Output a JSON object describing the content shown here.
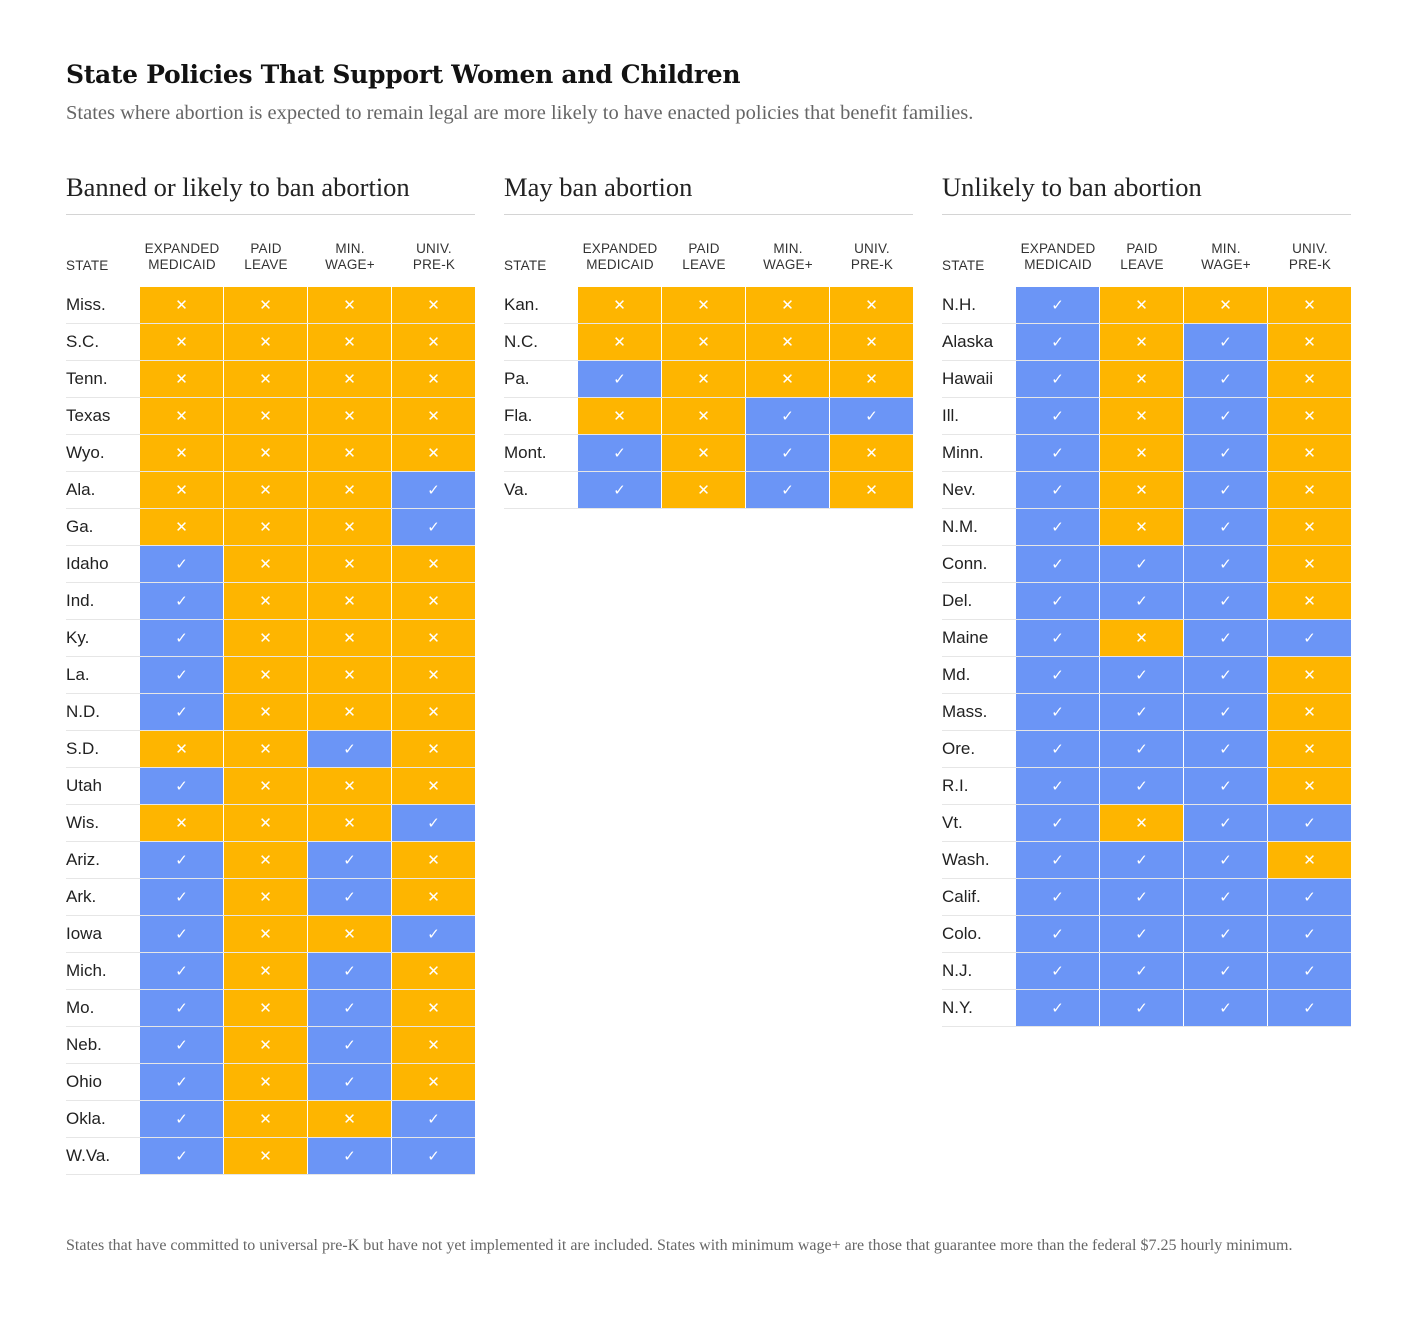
{
  "title": "State Policies That Support Women and Children",
  "subtitle": "States where abortion is expected to remain legal are more likely to have enacted policies that benefit families.",
  "footnote": "States that have committed to universal pre-K but have not yet implemented it are included. States with minimum wage+ are those that guarantee more than the federal $7.25 hourly minimum.",
  "symbols": {
    "yes": "✓",
    "no": "✕"
  },
  "colors": {
    "yes": "#6b95f6",
    "no": "#feb500"
  },
  "chart_data": {
    "type": "table",
    "state_header": "STATE",
    "columns": [
      "EXPANDED\nMEDICAID",
      "PAID\nLEAVE",
      "MIN.\nWAGE+",
      "UNIV.\nPRE-K"
    ],
    "groups": [
      {
        "title": "Banned or likely to ban abortion",
        "rows": [
          {
            "state": "Miss.",
            "values": [
              0,
              0,
              0,
              0
            ]
          },
          {
            "state": "S.C.",
            "values": [
              0,
              0,
              0,
              0
            ]
          },
          {
            "state": "Tenn.",
            "values": [
              0,
              0,
              0,
              0
            ]
          },
          {
            "state": "Texas",
            "values": [
              0,
              0,
              0,
              0
            ]
          },
          {
            "state": "Wyo.",
            "values": [
              0,
              0,
              0,
              0
            ]
          },
          {
            "state": "Ala.",
            "values": [
              0,
              0,
              0,
              1
            ]
          },
          {
            "state": "Ga.",
            "values": [
              0,
              0,
              0,
              1
            ]
          },
          {
            "state": "Idaho",
            "values": [
              1,
              0,
              0,
              0
            ]
          },
          {
            "state": "Ind.",
            "values": [
              1,
              0,
              0,
              0
            ]
          },
          {
            "state": "Ky.",
            "values": [
              1,
              0,
              0,
              0
            ]
          },
          {
            "state": "La.",
            "values": [
              1,
              0,
              0,
              0
            ]
          },
          {
            "state": "N.D.",
            "values": [
              1,
              0,
              0,
              0
            ]
          },
          {
            "state": "S.D.",
            "values": [
              0,
              0,
              1,
              0
            ]
          },
          {
            "state": "Utah",
            "values": [
              1,
              0,
              0,
              0
            ]
          },
          {
            "state": "Wis.",
            "values": [
              0,
              0,
              0,
              1
            ]
          },
          {
            "state": "Ariz.",
            "values": [
              1,
              0,
              1,
              0
            ]
          },
          {
            "state": "Ark.",
            "values": [
              1,
              0,
              1,
              0
            ]
          },
          {
            "state": "Iowa",
            "values": [
              1,
              0,
              0,
              1
            ]
          },
          {
            "state": "Mich.",
            "values": [
              1,
              0,
              1,
              0
            ]
          },
          {
            "state": "Mo.",
            "values": [
              1,
              0,
              1,
              0
            ]
          },
          {
            "state": "Neb.",
            "values": [
              1,
              0,
              1,
              0
            ]
          },
          {
            "state": "Ohio",
            "values": [
              1,
              0,
              1,
              0
            ]
          },
          {
            "state": "Okla.",
            "values": [
              1,
              0,
              0,
              1
            ]
          },
          {
            "state": "W.Va.",
            "values": [
              1,
              0,
              1,
              1
            ]
          }
        ]
      },
      {
        "title": "May ban abortion",
        "rows": [
          {
            "state": "Kan.",
            "values": [
              0,
              0,
              0,
              0
            ]
          },
          {
            "state": "N.C.",
            "values": [
              0,
              0,
              0,
              0
            ]
          },
          {
            "state": "Pa.",
            "values": [
              1,
              0,
              0,
              0
            ]
          },
          {
            "state": "Fla.",
            "values": [
              0,
              0,
              1,
              1
            ]
          },
          {
            "state": "Mont.",
            "values": [
              1,
              0,
              1,
              0
            ]
          },
          {
            "state": "Va.",
            "values": [
              1,
              0,
              1,
              0
            ]
          }
        ]
      },
      {
        "title": "Unlikely to ban abortion",
        "rows": [
          {
            "state": "N.H.",
            "values": [
              1,
              0,
              0,
              0
            ]
          },
          {
            "state": "Alaska",
            "values": [
              1,
              0,
              1,
              0
            ]
          },
          {
            "state": "Hawaii",
            "values": [
              1,
              0,
              1,
              0
            ]
          },
          {
            "state": "Ill.",
            "values": [
              1,
              0,
              1,
              0
            ]
          },
          {
            "state": "Minn.",
            "values": [
              1,
              0,
              1,
              0
            ]
          },
          {
            "state": "Nev.",
            "values": [
              1,
              0,
              1,
              0
            ]
          },
          {
            "state": "N.M.",
            "values": [
              1,
              0,
              1,
              0
            ]
          },
          {
            "state": "Conn.",
            "values": [
              1,
              1,
              1,
              0
            ]
          },
          {
            "state": "Del.",
            "values": [
              1,
              1,
              1,
              0
            ]
          },
          {
            "state": "Maine",
            "values": [
              1,
              0,
              1,
              1
            ]
          },
          {
            "state": "Md.",
            "values": [
              1,
              1,
              1,
              0
            ]
          },
          {
            "state": "Mass.",
            "values": [
              1,
              1,
              1,
              0
            ]
          },
          {
            "state": "Ore.",
            "values": [
              1,
              1,
              1,
              0
            ]
          },
          {
            "state": "R.I.",
            "values": [
              1,
              1,
              1,
              0
            ]
          },
          {
            "state": "Vt.",
            "values": [
              1,
              0,
              1,
              1
            ]
          },
          {
            "state": "Wash.",
            "values": [
              1,
              1,
              1,
              0
            ]
          },
          {
            "state": "Calif.",
            "values": [
              1,
              1,
              1,
              1
            ]
          },
          {
            "state": "Colo.",
            "values": [
              1,
              1,
              1,
              1
            ]
          },
          {
            "state": "N.J.",
            "values": [
              1,
              1,
              1,
              1
            ]
          },
          {
            "state": "N.Y.",
            "values": [
              1,
              1,
              1,
              1
            ]
          }
        ]
      }
    ]
  }
}
